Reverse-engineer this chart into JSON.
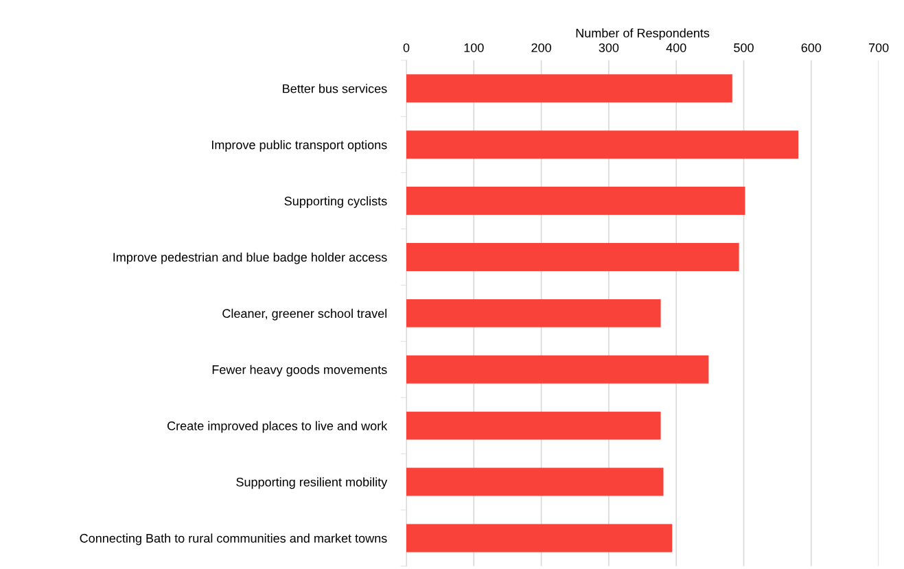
{
  "chart_data": {
    "type": "bar",
    "orientation": "horizontal",
    "xlabel": "Number of Respondents",
    "categories": [
      "Better bus services",
      "Improve public transport options",
      "Supporting cyclists",
      "Improve pedestrian and blue badge holder access",
      "Cleaner, greener school travel",
      "Fewer heavy goods movements",
      "Create improved places to live and work",
      "Supporting resilient mobility",
      "Connecting Bath to rural communities and market towns"
    ],
    "values": [
      483,
      581,
      502,
      493,
      377,
      448,
      377,
      381,
      394
    ],
    "color": "#f9423a",
    "xlim": [
      0,
      700
    ],
    "xticks": [
      0,
      100,
      200,
      300,
      400,
      500,
      600,
      700
    ],
    "grid": "x"
  }
}
